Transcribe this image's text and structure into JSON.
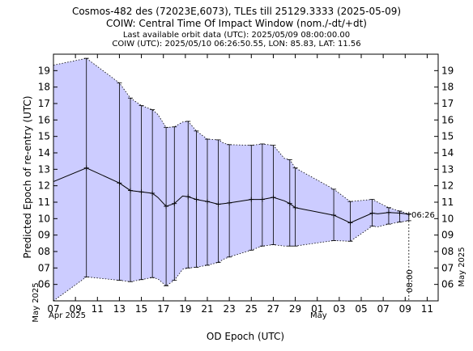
{
  "titles": {
    "line1": "Cosmos-482 des (72023E,6073), TLEs till 25129.3333 (2025-05-09)",
    "line2": "COIW: Central Time Of Impact Window (nom./-dt/+dt)",
    "line3": "Last available orbit data (UTC): 2025/05/09 08:00:00.00",
    "line4": "COIW (UTC): 2025/05/10 06:26:50.55, LON: 85.83, LAT: 11.56"
  },
  "colors": {
    "band_fill": "#ccccff",
    "line": "#000000"
  },
  "chart_data": {
    "type": "line",
    "xlabel": "OD Epoch (UTC)",
    "ylabel": "Predicted Epoch of re-entry (UTC)",
    "y_side_label_left": "May 2025",
    "y_side_label_right": "May 2025",
    "x_month_labels": [
      "Apr 2025",
      "May"
    ],
    "x_tick_labels": [
      "07",
      "09",
      "11",
      "13",
      "15",
      "17",
      "19",
      "21",
      "23",
      "25",
      "27",
      "29",
      "01",
      "03",
      "05",
      "07",
      "09",
      "11"
    ],
    "y_tick_labels": [
      "06",
      "07",
      "08",
      "09",
      "10",
      "11",
      "12",
      "13",
      "14",
      "15",
      "16",
      "17",
      "18",
      "19"
    ],
    "xlim": [
      "2025-04-07",
      "2025-05-12"
    ],
    "ylim": [
      "2025-05-05",
      "2025-05-20"
    ],
    "last_orbit_marker": "08:00",
    "final_impact_marker": "06:26",
    "grid": false,
    "series": [
      {
        "x": [
          "2025-04-06 00:00",
          "2025-04-10 00:00",
          "2025-04-13 00:00",
          "2025-04-14 00:00",
          "2025-04-15 00:00",
          "2025-04-16 00:00",
          "2025-04-16 12:00",
          "2025-04-17 06:00",
          "2025-04-18 00:00",
          "2025-04-18 18:00",
          "2025-04-19 06:00",
          "2025-04-20 00:00",
          "2025-04-21 00:00",
          "2025-04-22 00:00",
          "2025-04-22 12:00",
          "2025-04-23 00:00",
          "2025-04-25 00:00",
          "2025-04-26 00:00",
          "2025-04-27 00:00",
          "2025-04-28 00:00",
          "2025-04-28 12:00",
          "2025-04-29 00:00",
          "2025-05-02 12:00",
          "2025-05-04 00:00",
          "2025-05-06 00:00",
          "2025-05-06 12:00",
          "2025-05-07 12:00",
          "2025-05-08 12:00",
          "2025-05-09 08:00"
        ],
        "nominal": [
          "2025-05-12 06:00",
          "2025-05-13 02:00",
          "2025-05-12 04:00",
          "2025-05-11 17:00",
          "2025-05-11 15:00",
          "2025-05-11 13:00",
          "2025-05-11 07:00",
          "2025-05-10 18:00",
          "2025-05-10 22:00",
          "2025-05-11 09:00",
          "2025-05-11 08:00",
          "2025-05-11 04:00",
          "2025-05-11 01:00",
          "2025-05-10 21:00",
          "2025-05-10 22:00",
          "2025-05-10 23:00",
          "2025-05-11 04:00",
          "2025-05-11 04:00",
          "2025-05-11 07:00",
          "2025-05-11 02:00",
          "2025-05-10 22:00",
          "2025-05-10 16:00",
          "2025-05-10 05:00",
          "2025-05-09 18:00",
          "2025-05-10 08:00",
          "2025-05-10 07:00",
          "2025-05-10 09:00",
          "2025-05-10 08:00",
          "2025-05-10 06:26"
        ],
        "minus_dt": [
          "2025-05-05 00:00",
          "2025-05-06 11:00",
          "2025-05-06 06:00",
          "2025-05-06 04:00",
          "2025-05-06 07:00",
          "2025-05-06 10:00",
          "2025-05-06 08:00",
          "2025-05-05 22:00",
          "2025-05-06 06:00",
          "2025-05-06 22:00",
          "2025-05-07 00:00",
          "2025-05-07 01:00",
          "2025-05-07 04:00",
          "2025-05-07 08:00",
          "2025-05-07 13:00",
          "2025-05-07 16:00",
          "2025-05-08 02:00",
          "2025-05-08 08:00",
          "2025-05-08 10:00",
          "2025-05-08 08:00",
          "2025-05-08 08:00",
          "2025-05-08 08:00",
          "2025-05-08 16:00",
          "2025-05-08 15:00",
          "2025-05-09 13:00",
          "2025-05-09 12:00",
          "2025-05-09 16:00",
          "2025-05-09 19:00",
          "2025-05-09 21:00"
        ],
        "plus_dt": [
          "2025-05-19 08:00",
          "2025-05-19 18:00",
          "2025-05-18 06:00",
          "2025-05-17 08:00",
          "2025-05-16 21:00",
          "2025-05-16 15:00",
          "2025-05-16 08:00",
          "2025-05-15 13:00",
          "2025-05-15 14:00",
          "2025-05-15 21:00",
          "2025-05-15 22:00",
          "2025-05-15 08:00",
          "2025-05-14 20:00",
          "2025-05-14 19:00",
          "2025-05-14 14:00",
          "2025-05-14 12:00",
          "2025-05-14 11:00",
          "2025-05-14 13:00",
          "2025-05-14 11:00",
          "2025-05-13 16:00",
          "2025-05-13 14:00",
          "2025-05-13 02:00",
          "2025-05-11 19:00",
          "2025-05-11 01:00",
          "2025-05-11 04:00",
          "2025-05-11 00:00",
          "2025-05-10 16:00",
          "2025-05-10 11:00",
          "2025-05-10 07:00"
        ],
        "error_bars": [
          "2025-04-10 00:00",
          "2025-04-13 00:00",
          "2025-04-14 00:00",
          "2025-04-15 00:00",
          "2025-04-16 00:00",
          "2025-04-17 06:00",
          "2025-04-18 00:00",
          "2025-04-19 06:00",
          "2025-04-20 00:00",
          "2025-04-21 00:00",
          "2025-04-22 00:00",
          "2025-04-23 00:00",
          "2025-04-25 00:00",
          "2025-04-26 00:00",
          "2025-04-27 00:00",
          "2025-04-28 12:00",
          "2025-04-29 00:00",
          "2025-05-02 12:00",
          "2025-05-04 00:00",
          "2025-05-06 00:00",
          "2025-05-07 12:00",
          "2025-05-08 12:00",
          "2025-05-09 08:00"
        ]
      }
    ]
  }
}
